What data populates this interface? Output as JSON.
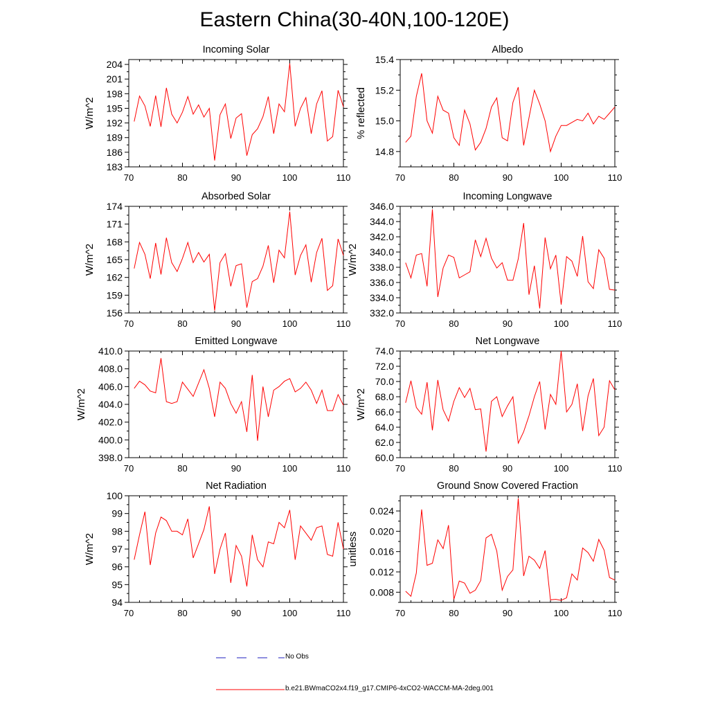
{
  "title": "Eastern China(30-40N,100-120E)",
  "legend": {
    "no_obs_label": "No Obs",
    "no_obs_color": "#1f1fbf",
    "model_label": "b.e21.BWmaCO2x4.f19_g17.CMIP6-4xCO2-WACCM-MA-2deg.001",
    "model_color": "#ff0000"
  },
  "chart_data": [
    {
      "type": "line",
      "title": "Incoming Solar",
      "ylabel": "W/m^2",
      "xlim": [
        70,
        110
      ],
      "ylim": [
        183,
        205
      ],
      "xticks": [
        70,
        80,
        90,
        100,
        110
      ],
      "yticks": [
        183,
        186,
        189,
        192,
        195,
        198,
        201,
        204
      ],
      "ytick_labels": [
        "183",
        "186",
        "189",
        "192",
        "195",
        "198",
        "201",
        "204"
      ],
      "x": [
        71,
        72,
        73,
        74,
        75,
        76,
        77,
        78,
        79,
        80,
        81,
        82,
        83,
        84,
        85,
        86,
        87,
        88,
        89,
        90,
        91,
        92,
        93,
        94,
        95,
        96,
        97,
        98,
        99,
        100,
        101,
        102,
        103,
        104,
        105,
        106,
        107,
        108,
        109,
        110
      ],
      "values": [
        192.3,
        197.5,
        195.5,
        191.3,
        197.6,
        191.2,
        199.2,
        193.8,
        192.0,
        194.2,
        197.4,
        193.8,
        195.7,
        193.2,
        195.0,
        184.3,
        193.7,
        195.9,
        188.8,
        193.0,
        193.9,
        185.3,
        189.6,
        190.8,
        193.3,
        197.4,
        189.8,
        195.9,
        194.3,
        204.2,
        191.3,
        195.0,
        197.2,
        189.8,
        195.9,
        198.6,
        188.3,
        189.2,
        198.7,
        195.3
      ]
    },
    {
      "type": "line",
      "title": "Albedo",
      "ylabel": "% reflected",
      "xlim": [
        70,
        110
      ],
      "ylim": [
        14.7,
        15.4
      ],
      "xticks": [
        70,
        80,
        90,
        100,
        110
      ],
      "yticks": [
        14.8,
        15.0,
        15.2,
        15.4
      ],
      "ytick_labels": [
        "14.8",
        "15.0",
        "15.2",
        "15.4"
      ],
      "x": [
        71,
        72,
        73,
        74,
        75,
        76,
        77,
        78,
        79,
        80,
        81,
        82,
        83,
        84,
        85,
        86,
        87,
        88,
        89,
        90,
        91,
        92,
        93,
        94,
        95,
        96,
        97,
        98,
        99,
        100,
        101,
        102,
        103,
        104,
        105,
        106,
        107,
        108,
        109,
        110
      ],
      "values": [
        14.86,
        14.9,
        15.16,
        15.31,
        15.0,
        14.92,
        15.16,
        15.07,
        15.05,
        14.89,
        14.84,
        15.07,
        14.98,
        14.81,
        14.86,
        14.95,
        15.09,
        15.15,
        14.89,
        14.87,
        15.12,
        15.22,
        14.84,
        15.02,
        15.2,
        15.11,
        15.0,
        14.8,
        14.9,
        14.97,
        14.97,
        14.99,
        15.01,
        15.0,
        15.05,
        14.98,
        15.03,
        15.01,
        15.05,
        15.09
      ]
    },
    {
      "type": "line",
      "title": "Absorbed Solar",
      "ylabel": "W/m^2",
      "xlim": [
        70,
        110
      ],
      "ylim": [
        156,
        174
      ],
      "xticks": [
        70,
        80,
        90,
        100,
        110
      ],
      "yticks": [
        156,
        159,
        162,
        165,
        168,
        171,
        174
      ],
      "ytick_labels": [
        "156",
        "159",
        "162",
        "165",
        "168",
        "171",
        "174"
      ],
      "x": [
        71,
        72,
        73,
        74,
        75,
        76,
        77,
        78,
        79,
        80,
        81,
        82,
        83,
        84,
        85,
        86,
        87,
        88,
        89,
        90,
        91,
        92,
        93,
        94,
        95,
        96,
        97,
        98,
        99,
        100,
        101,
        102,
        103,
        104,
        105,
        106,
        107,
        108,
        109,
        110
      ],
      "values": [
        163.5,
        167.9,
        165.9,
        161.8,
        167.8,
        162.5,
        168.7,
        164.5,
        163.0,
        165.2,
        167.9,
        164.5,
        166.2,
        164.6,
        165.9,
        156.4,
        164.5,
        166.0,
        160.5,
        164.0,
        164.3,
        156.9,
        161.3,
        161.8,
        163.9,
        167.4,
        161.1,
        166.6,
        165.3,
        173.1,
        162.4,
        165.7,
        167.5,
        161.2,
        166.2,
        168.6,
        159.8,
        160.6,
        168.5,
        165.7
      ]
    },
    {
      "type": "line",
      "title": "Incoming Longwave",
      "ylabel": "W/m^2",
      "xlim": [
        70,
        110
      ],
      "ylim": [
        332.0,
        346.0
      ],
      "xticks": [
        70,
        80,
        90,
        100,
        110
      ],
      "yticks": [
        332,
        334,
        336,
        338,
        340,
        342,
        344,
        346
      ],
      "ytick_labels": [
        "332.0",
        "334.0",
        "336.0",
        "338.0",
        "340.0",
        "342.0",
        "344.0",
        "346.0"
      ],
      "x": [
        71,
        72,
        73,
        74,
        75,
        76,
        77,
        78,
        79,
        80,
        81,
        82,
        83,
        84,
        85,
        86,
        87,
        88,
        89,
        90,
        91,
        92,
        93,
        94,
        95,
        96,
        97,
        98,
        99,
        100,
        101,
        102,
        103,
        104,
        105,
        106,
        107,
        108,
        109,
        110
      ],
      "values": [
        338.6,
        336.6,
        339.6,
        339.8,
        335.5,
        345.6,
        334.1,
        337.9,
        339.6,
        339.3,
        336.6,
        337.0,
        337.4,
        341.6,
        339.4,
        341.8,
        339.2,
        337.9,
        338.6,
        336.3,
        336.3,
        339.1,
        343.8,
        334.4,
        338.2,
        332.6,
        341.9,
        337.8,
        339.6,
        333.1,
        339.4,
        338.8,
        336.8,
        342.1,
        336.1,
        335.2,
        340.3,
        339.2,
        335.1,
        335.0
      ]
    },
    {
      "type": "line",
      "title": "Emitted Longwave",
      "ylabel": "W/m^2",
      "xlim": [
        70,
        110
      ],
      "ylim": [
        398.0,
        410.0
      ],
      "xticks": [
        70,
        80,
        90,
        100,
        110
      ],
      "yticks": [
        398,
        400,
        402,
        404,
        406,
        408,
        410
      ],
      "ytick_labels": [
        "398.0",
        "400.0",
        "402.0",
        "404.0",
        "406.0",
        "408.0",
        "410.0"
      ],
      "x": [
        71,
        72,
        73,
        74,
        75,
        76,
        77,
        78,
        79,
        80,
        81,
        82,
        83,
        84,
        85,
        86,
        87,
        88,
        89,
        90,
        91,
        92,
        93,
        94,
        95,
        96,
        97,
        98,
        99,
        100,
        101,
        102,
        103,
        104,
        105,
        106,
        107,
        108,
        109,
        110
      ],
      "values": [
        405.8,
        406.6,
        406.2,
        405.5,
        405.3,
        409.2,
        404.3,
        404.1,
        404.3,
        406.5,
        405.7,
        404.9,
        406.4,
        407.9,
        405.8,
        402.6,
        406.5,
        405.8,
        404.1,
        403.0,
        404.3,
        400.9,
        407.3,
        399.9,
        406.0,
        402.6,
        405.6,
        406.0,
        406.6,
        406.9,
        405.4,
        405.8,
        406.5,
        405.6,
        404.1,
        405.6,
        403.3,
        403.3,
        405.1,
        403.9
      ]
    },
    {
      "type": "line",
      "title": "Net Longwave",
      "ylabel": "W/m^2",
      "xlim": [
        70,
        110
      ],
      "ylim": [
        60.0,
        74.0
      ],
      "xticks": [
        70,
        80,
        90,
        100,
        110
      ],
      "yticks": [
        60,
        62,
        64,
        66,
        68,
        70,
        72,
        74
      ],
      "ytick_labels": [
        "60.0",
        "62.0",
        "64.0",
        "66.0",
        "68.0",
        "70.0",
        "72.0",
        "74.0"
      ],
      "x": [
        71,
        72,
        73,
        74,
        75,
        76,
        77,
        78,
        79,
        80,
        81,
        82,
        83,
        84,
        85,
        86,
        87,
        88,
        89,
        90,
        91,
        92,
        93,
        94,
        95,
        96,
        97,
        98,
        99,
        100,
        101,
        102,
        103,
        104,
        105,
        106,
        107,
        108,
        109,
        110
      ],
      "values": [
        67.2,
        70.1,
        66.6,
        65.7,
        69.9,
        63.6,
        70.2,
        66.3,
        64.8,
        67.4,
        69.2,
        67.9,
        69.1,
        66.3,
        66.4,
        60.8,
        67.4,
        68.0,
        65.4,
        66.8,
        68.0,
        61.9,
        63.4,
        65.5,
        68.0,
        70.0,
        63.7,
        68.3,
        67.0,
        74.0,
        66.0,
        67.0,
        69.7,
        63.5,
        68.1,
        70.4,
        62.9,
        64.0,
        70.1,
        68.9
      ]
    },
    {
      "type": "line",
      "title": "Net Radiation",
      "ylabel": "W/m^2",
      "xlim": [
        70,
        110
      ],
      "ylim": [
        94,
        100
      ],
      "xticks": [
        70,
        80,
        90,
        100,
        110
      ],
      "yticks": [
        94,
        95,
        96,
        97,
        98,
        99,
        100
      ],
      "ytick_labels": [
        "94",
        "95",
        "96",
        "97",
        "98",
        "99",
        "100"
      ],
      "x": [
        71,
        72,
        73,
        74,
        75,
        76,
        77,
        78,
        79,
        80,
        81,
        82,
        83,
        84,
        85,
        86,
        87,
        88,
        89,
        90,
        91,
        92,
        93,
        94,
        95,
        96,
        97,
        98,
        99,
        100,
        101,
        102,
        103,
        104,
        105,
        106,
        107,
        108,
        109,
        110
      ],
      "values": [
        96.4,
        97.8,
        99.1,
        96.1,
        97.9,
        98.8,
        98.6,
        98.0,
        98.0,
        97.8,
        98.7,
        96.5,
        97.3,
        98.1,
        99.4,
        95.6,
        97.0,
        97.9,
        95.1,
        97.2,
        96.6,
        94.9,
        97.8,
        96.4,
        96.0,
        97.4,
        97.3,
        98.5,
        98.2,
        99.2,
        96.4,
        98.3,
        97.9,
        97.5,
        98.2,
        98.3,
        96.7,
        96.6,
        98.5,
        97.0
      ]
    },
    {
      "type": "line",
      "title": "Ground Snow Covered Fraction",
      "ylabel": "unitless",
      "xlim": [
        70,
        110
      ],
      "ylim": [
        0.006,
        0.027
      ],
      "xticks": [
        70,
        80,
        90,
        100,
        110
      ],
      "yticks": [
        0.008,
        0.012,
        0.016,
        0.02,
        0.024
      ],
      "ytick_labels": [
        "0.008",
        "0.012",
        "0.016",
        "0.020",
        "0.024"
      ],
      "x": [
        71,
        72,
        73,
        74,
        75,
        76,
        77,
        78,
        79,
        80,
        81,
        82,
        83,
        84,
        85,
        86,
        87,
        88,
        89,
        90,
        91,
        92,
        93,
        94,
        95,
        96,
        97,
        98,
        99,
        100,
        101,
        102,
        103,
        104,
        105,
        106,
        107,
        108,
        109,
        110
      ],
      "values": [
        0.0082,
        0.0072,
        0.0118,
        0.0243,
        0.0133,
        0.0137,
        0.0183,
        0.0166,
        0.0212,
        0.0066,
        0.0102,
        0.0098,
        0.0078,
        0.0084,
        0.0103,
        0.0187,
        0.0194,
        0.0161,
        0.0084,
        0.0111,
        0.0124,
        0.0265,
        0.0112,
        0.0151,
        0.0143,
        0.0127,
        0.0162,
        0.0065,
        0.0066,
        0.0064,
        0.0069,
        0.0116,
        0.0104,
        0.0167,
        0.0158,
        0.0141,
        0.0184,
        0.0163,
        0.0109,
        0.0104
      ]
    }
  ]
}
